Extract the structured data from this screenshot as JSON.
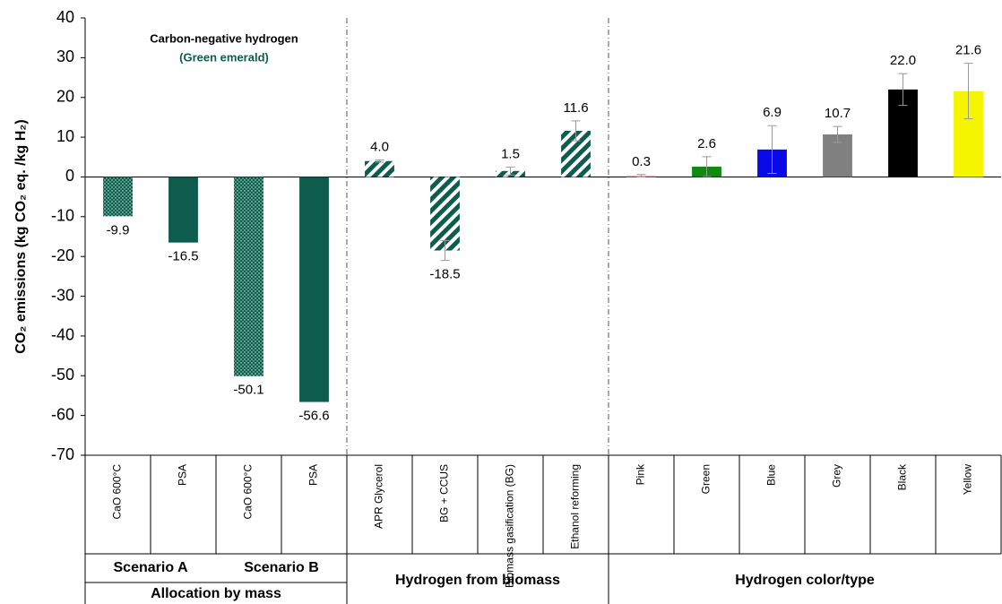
{
  "chart_data": {
    "type": "bar",
    "y_label": "CO₂ emissions (kg CO₂ eq. /kg H₂)",
    "annotation": "Carbon-negative hydrogen",
    "annotation_sub": "(Green emerald)",
    "categories": [
      "CaO 600°C",
      "PSA",
      "CaO 600°C",
      "PSA",
      "APR Glycerol",
      "BG + CCUS",
      "Biomass gasification (BG)",
      "Ethanol reforming",
      "Pink",
      "Green",
      "Blue",
      "Grey",
      "Black",
      "Yellow"
    ],
    "values": [
      -9.9,
      -16.5,
      -50.1,
      -56.6,
      4.0,
      -18.5,
      1.5,
      11.6,
      0.3,
      2.6,
      6.9,
      10.7,
      22.0,
      21.6
    ],
    "value_labels": [
      "-9.9",
      "-16.5",
      "-50.1",
      "-56.6",
      "4.0",
      "-18.5",
      "1.5",
      "11.6",
      "0.3",
      "2.6",
      "6.9",
      "10.7",
      "22.0",
      "21.6"
    ],
    "errors": [
      null,
      null,
      null,
      null,
      0.3,
      2.5,
      1,
      2.5,
      0.3,
      2.5,
      6,
      2,
      4,
      7
    ],
    "colors": [
      "#0e5c4e",
      "#0e5c4e",
      "#0e5c4e",
      "#0e5c4e",
      "#0e5c4e",
      "#0e5c4e",
      "#0e5c4e",
      "#0e5c4e",
      "#e8a0b0",
      "#118a11",
      "#0a0ae6",
      "#808080",
      "#000000",
      "#f5f500"
    ],
    "patterns": [
      "dots",
      "solid",
      "dots",
      "solid",
      "hatch",
      "hatch",
      "hatch",
      "hatch",
      "solid",
      "solid",
      "solid",
      "solid",
      "solid",
      "solid"
    ],
    "subgroups": [
      {
        "label": "Scenario A",
        "categories": [
          0,
          1
        ]
      },
      {
        "label": "Scenario B",
        "categories": [
          2,
          3
        ]
      }
    ],
    "groups": [
      {
        "label": "Allocation by mass",
        "categories": [
          0,
          1,
          2,
          3
        ]
      },
      {
        "label": "Hydrogen from biomass",
        "categories": [
          4,
          5,
          6,
          7
        ]
      },
      {
        "label": "Hydrogen color/type",
        "categories": [
          8,
          9,
          10,
          11,
          12,
          13
        ]
      }
    ],
    "ylim": [
      -70,
      40
    ],
    "yticks": [
      -70,
      -60,
      -50,
      -40,
      -30,
      -20,
      -10,
      0,
      10,
      20,
      30,
      40
    ]
  }
}
